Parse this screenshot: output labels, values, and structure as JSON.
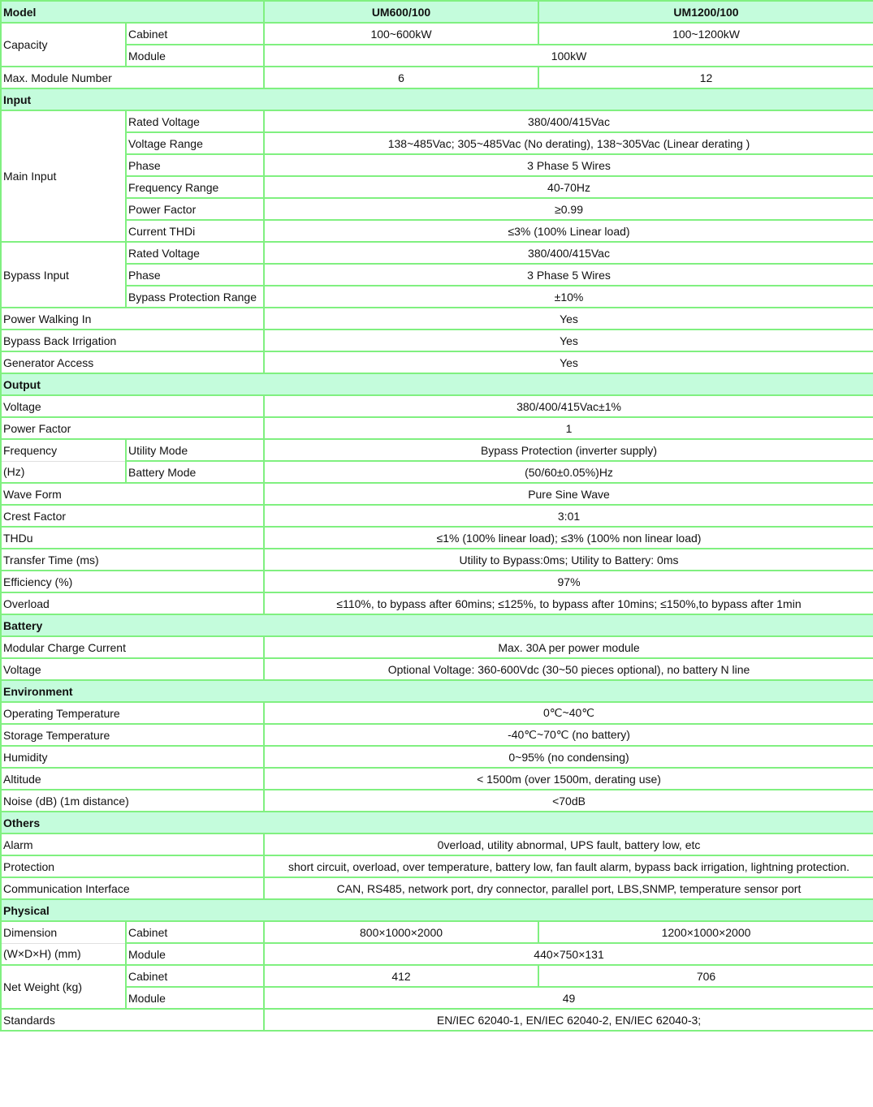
{
  "model": {
    "label": "Model",
    "cols": [
      "UM600/100",
      "UM1200/100"
    ]
  },
  "capacity": {
    "label": "Capacity",
    "cabinet": "Cabinet",
    "cabinet_vals": [
      "100~600kW",
      "100~1200kW"
    ],
    "module": "Module",
    "module_val": "100kW"
  },
  "max_module": {
    "label": "Max. Module Number",
    "vals": [
      "6",
      "12"
    ]
  },
  "input": {
    "title": "Input",
    "main": {
      "label": "Main Input",
      "rows": [
        [
          "Rated Voltage",
          "380/400/415Vac"
        ],
        [
          "Voltage Range",
          "138~485Vac; 305~485Vac (No derating), 138~305Vac (Linear derating )"
        ],
        [
          "Phase",
          "3 Phase 5 Wires"
        ],
        [
          "Frequency Range",
          "40-70Hz"
        ],
        [
          "Power Factor",
          "≥0.99"
        ],
        [
          "Current THDi",
          "≤3% (100% Linear load)"
        ]
      ]
    },
    "bypass": {
      "label": "Bypass Input",
      "rows": [
        [
          "Rated Voltage",
          "380/400/415Vac"
        ],
        [
          "Phase",
          "3 Phase 5 Wires"
        ],
        [
          "Bypass Protection Range",
          "±10%"
        ]
      ]
    },
    "rows": [
      [
        "Power Walking In",
        "Yes"
      ],
      [
        "Bypass Back Irrigation",
        "Yes"
      ],
      [
        "Generator Access",
        "Yes"
      ]
    ]
  },
  "output": {
    "title": "Output",
    "rows_a": [
      [
        "Voltage",
        "380/400/415Vac±1%"
      ],
      [
        "Power Factor",
        "1"
      ]
    ],
    "frequency": {
      "label1": "Frequency",
      "label2": "(Hz)",
      "rows": [
        [
          "Utility Mode",
          "Bypass Protection (inverter supply)"
        ],
        [
          "Battery Mode",
          "(50/60±0.05%)Hz"
        ]
      ]
    },
    "rows_b": [
      [
        "Wave Form",
        "Pure Sine Wave"
      ],
      [
        "Crest Factor",
        "3:01"
      ],
      [
        "THDu",
        "≤1% (100% linear load); ≤3% (100% non linear load)"
      ],
      [
        "Transfer Time (ms)",
        "Utility to Bypass:0ms; Utility to Battery: 0ms"
      ],
      [
        "Efficiency (%)",
        "97%"
      ],
      [
        "Overload",
        "≤110%, to bypass after 60mins; ≤125%, to bypass after 10mins; ≤150%,to bypass after 1min"
      ]
    ]
  },
  "battery": {
    "title": "Battery",
    "rows": [
      [
        "Modular Charge Current",
        "Max. 30A per power module"
      ],
      [
        "Voltage",
        "Optional Voltage: 360-600Vdc (30~50 pieces optional), no battery N line"
      ]
    ]
  },
  "environment": {
    "title": "Environment",
    "rows": [
      [
        "Operating Temperature",
        "0℃~40℃"
      ],
      [
        "Storage Temperature",
        "-40℃~70℃ (no battery)"
      ],
      [
        "Humidity",
        "0~95% (no condensing)"
      ],
      [
        "Altitude",
        "< 1500m (over 1500m, derating use)"
      ],
      [
        "Noise (dB) (1m distance)",
        "<70dB"
      ]
    ]
  },
  "others": {
    "title": "Others",
    "rows": [
      [
        "Alarm",
        "0verload, utility abnormal, UPS fault, battery low, etc"
      ],
      [
        "Protection",
        "short circuit, overload, over temperature, battery low, fan fault alarm, bypass back irrigation, lightning protection."
      ],
      [
        "Communication Interface",
        "CAN, RS485, network port, dry connector, parallel port, LBS,SNMP, temperature sensor port"
      ]
    ]
  },
  "physical": {
    "title": "Physical",
    "dimension": {
      "label1": "Dimension",
      "label2": "(W×D×H) (mm)",
      "cabinet": "Cabinet",
      "cabinet_vals": [
        "800×1000×2000",
        "1200×1000×2000"
      ],
      "module": "Module",
      "module_val": "440×750×131"
    },
    "weight": {
      "label": "Net Weight (kg)",
      "cabinet": "Cabinet",
      "cabinet_vals": [
        "412",
        "706"
      ],
      "module": "Module",
      "module_val": "49"
    },
    "standards": {
      "label": "Standards",
      "val": "EN/IEC 62040-1, EN/IEC 62040-2, EN/IEC 62040-3;"
    }
  }
}
